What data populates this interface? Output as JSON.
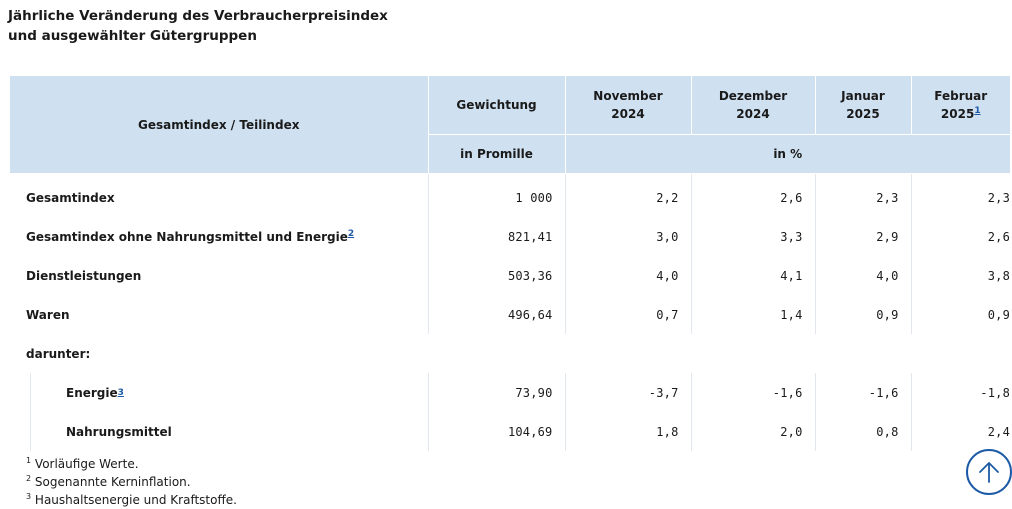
{
  "title": {
    "line1": "Jährliche Veränderung des Verbraucherpreisindex",
    "line2": "und ausgewählter Gütergruppen"
  },
  "table": {
    "header": {
      "col_label": "Gesamtindex / Teilindex",
      "weight": "Gewichtung",
      "weight_unit": "in Promille",
      "change_unit": "in %",
      "months": [
        {
          "line1": "November",
          "line2": "2024",
          "footnote": ""
        },
        {
          "line1": "Dezember",
          "line2": "2024",
          "footnote": ""
        },
        {
          "line1": "Januar",
          "line2": "2025",
          "footnote": ""
        },
        {
          "line1": "Februar",
          "line2": "2025",
          "footnote": "1"
        }
      ]
    },
    "rows": [
      {
        "label": "Gesamtindex",
        "footnote": "",
        "weight": "1 000",
        "values": [
          "2,2",
          "2,6",
          "2,3",
          "2,3"
        ]
      },
      {
        "label": "Gesamtindex ohne Nahrungsmittel und Energie",
        "footnote": "2",
        "weight": "821,41",
        "values": [
          "3,0",
          "3,3",
          "2,9",
          "2,6"
        ]
      },
      {
        "label": "Dienstleistungen",
        "footnote": "",
        "weight": "503,36",
        "values": [
          "4,0",
          "4,1",
          "4,0",
          "3,8"
        ]
      },
      {
        "label": "Waren",
        "footnote": "",
        "weight": "496,64",
        "values": [
          "0,7",
          "1,4",
          "0,9",
          "0,9"
        ]
      }
    ],
    "section_label": "darunter:",
    "sub_rows": [
      {
        "label": "Energie",
        "footnote": "3",
        "weight": "73,90",
        "values": [
          "-3,7",
          "-1,6",
          "-1,6",
          "-1,8"
        ]
      },
      {
        "label": "Nahrungsmittel",
        "footnote": "",
        "weight": "104,69",
        "values": [
          "1,8",
          "2,0",
          "0,8",
          "2,4"
        ]
      }
    ]
  },
  "footnotes": [
    {
      "mark": "1",
      "text": "Vorläufige Werte."
    },
    {
      "mark": "2",
      "text": "Sogenannte Kerninflation."
    },
    {
      "mark": "3",
      "text": "Haushaltsenergie und Kraftstoffe."
    }
  ],
  "scroll_top": {
    "icon": "arrow-up-icon",
    "color": "#1c5aa6"
  },
  "colors": {
    "header_bg": "#cfe0f1",
    "link": "#1c5aa6"
  }
}
